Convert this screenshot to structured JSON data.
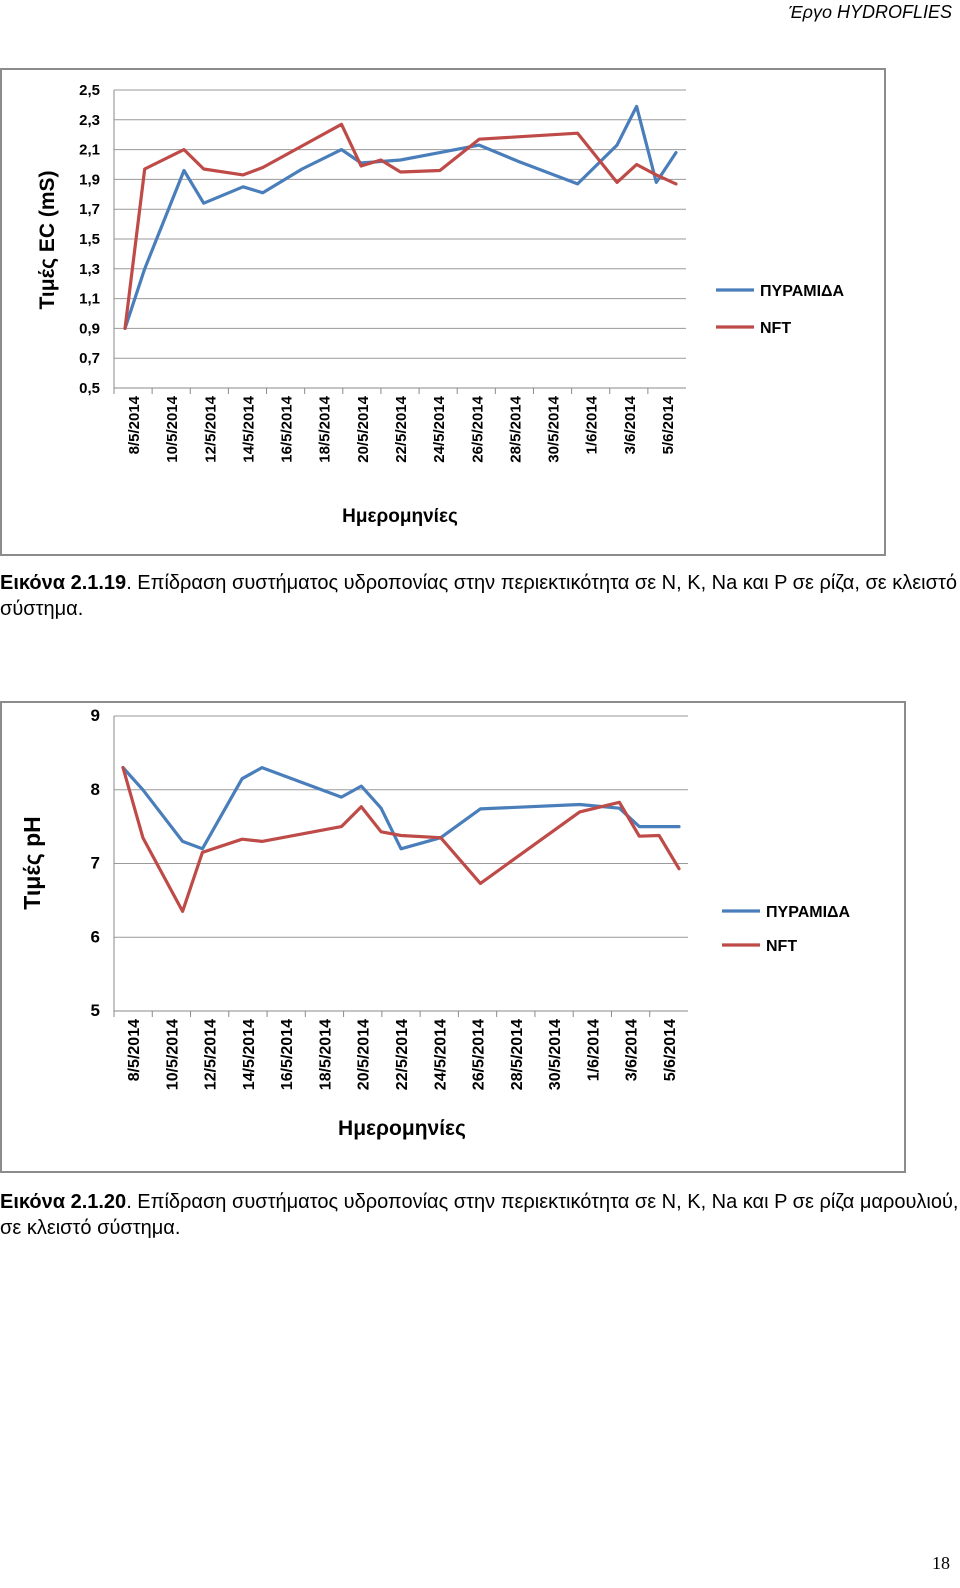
{
  "header": {
    "project": "Έργο HYDROFLIES"
  },
  "chart_data": [
    {
      "type": "line",
      "xlabel": "Ημερομηνίες",
      "ylabel": "Τιμές EC (mS)",
      "ylim": [
        0.5,
        2.5
      ],
      "yticks": [
        "0,5",
        "0,7",
        "0,9",
        "1,1",
        "1,3",
        "1,5",
        "1,7",
        "1,9",
        "2,1",
        "2,3",
        "2,5"
      ],
      "ytick_values": [
        0.5,
        0.7,
        0.9,
        1.1,
        1.3,
        1.5,
        1.7,
        1.9,
        2.1,
        2.3,
        2.5
      ],
      "categories": [
        "8/5/2014",
        "10/5/2014",
        "12/5/2014",
        "14/5/2014",
        "16/5/2014",
        "18/5/2014",
        "20/5/2014",
        "22/5/2014",
        "24/5/2014",
        "26/5/2014",
        "28/5/2014",
        "30/5/2014",
        "1/6/2014",
        "3/6/2014",
        "5/6/2014"
      ],
      "grid": true,
      "legend": "right",
      "series": [
        {
          "name": "ΠΥΡΑΜΙΔΑ",
          "color": "#4a7ebb",
          "x": [
            0,
            1,
            3,
            4,
            6,
            7,
            9,
            11,
            12,
            14,
            16,
            18,
            20,
            23,
            25,
            26,
            27,
            28
          ],
          "values": [
            0.9,
            1.3,
            1.96,
            1.74,
            1.85,
            1.81,
            1.97,
            2.1,
            2.01,
            2.03,
            2.08,
            2.13,
            2.02,
            1.87,
            2.13,
            2.39,
            1.88,
            2.08
          ]
        },
        {
          "name": "NFT",
          "color": "#be4b48",
          "x": [
            0,
            1,
            3,
            4,
            6,
            7,
            11,
            12,
            13,
            14,
            16,
            18,
            23,
            25,
            26,
            27,
            28
          ],
          "values": [
            0.9,
            1.97,
            2.1,
            1.97,
            1.93,
            1.98,
            2.27,
            1.99,
            2.03,
            1.95,
            1.96,
            2.17,
            2.21,
            1.88,
            2.0,
            1.93,
            1.87
          ]
        }
      ]
    },
    {
      "type": "line",
      "xlabel": "Ημερομηνίες",
      "ylabel": "Τιμές pH",
      "ylim": [
        5,
        9
      ],
      "yticks": [
        "5",
        "6",
        "7",
        "8",
        "9"
      ],
      "ytick_values": [
        5,
        6,
        7,
        8,
        9
      ],
      "categories": [
        "8/5/2014",
        "10/5/2014",
        "12/5/2014",
        "14/5/2014",
        "16/5/2014",
        "18/5/2014",
        "20/5/2014",
        "22/5/2014",
        "24/5/2014",
        "26/5/2014",
        "28/5/2014",
        "30/5/2014",
        "1/6/2014",
        "3/6/2014",
        "5/6/2014"
      ],
      "grid": true,
      "legend": "right",
      "series": [
        {
          "name": "ΠΥΡΑΜΙΔΑ",
          "color": "#4a7ebb",
          "x": [
            0,
            1,
            3,
            4,
            6,
            7,
            11,
            12,
            13,
            14,
            16,
            18,
            23,
            25,
            26,
            27,
            28
          ],
          "values": [
            8.3,
            8.0,
            7.3,
            7.2,
            8.15,
            8.3,
            7.9,
            8.05,
            7.75,
            7.2,
            7.35,
            7.74,
            7.8,
            7.75,
            7.5,
            7.5,
            7.5
          ]
        },
        {
          "name": "NFT",
          "color": "#be4b48",
          "x": [
            0,
            1,
            3,
            4,
            6,
            7,
            11,
            12,
            13,
            14,
            16,
            18,
            23,
            25,
            26,
            27,
            28
          ],
          "values": [
            8.3,
            7.35,
            6.35,
            7.15,
            7.33,
            7.3,
            7.5,
            7.77,
            7.43,
            7.38,
            7.35,
            6.73,
            7.7,
            7.83,
            7.37,
            7.38,
            6.93
          ]
        }
      ]
    }
  ],
  "captions": [
    {
      "number": "Εικόνα 2.1.19",
      "text": ". Επίδραση συστήματος υδροπονίας στην περιεκτικότητα σε N, K, Na και P σε ρίζα, σε κλειστό σύστημα."
    },
    {
      "number": "Εικόνα 2.1.20",
      "text": ". Επίδραση συστήματος υδροπονίας στην περιεκτικότητα σε N, K, Na και P σε ρίζα μαρουλιού, σε κλειστό σύστημα."
    }
  ],
  "page_number": "18"
}
